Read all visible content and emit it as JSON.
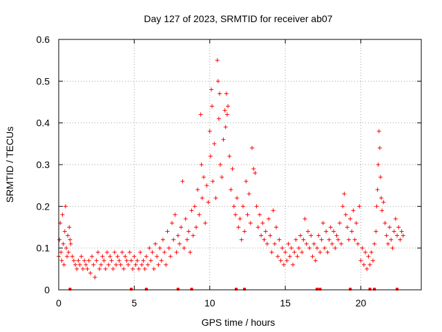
{
  "chart_data": {
    "type": "scatter",
    "title": "Day 127 of 2023, SRMTID for receiver ab07",
    "xlabel": "GPS time / hours",
    "ylabel": "SRMTID / TECUs",
    "xlim": [
      0,
      24
    ],
    "ylim": [
      0,
      0.6
    ],
    "xticks": [
      0,
      5,
      10,
      15,
      20
    ],
    "yticks": [
      0,
      0.1,
      0.2,
      0.3,
      0.4,
      0.5,
      0.6
    ],
    "xtick_labels": [
      "0",
      "5",
      "10",
      "15",
      "20"
    ],
    "ytick_labels": [
      "0",
      "0.1",
      "0.2",
      "0.3",
      "0.4",
      "0.5",
      "0.6"
    ],
    "grid": true,
    "marker": "+",
    "color": "#ff0000",
    "series": [
      {
        "name": "SRMTID",
        "points": [
          [
            0.0,
            0.08
          ],
          [
            0.05,
            0.12
          ],
          [
            0.1,
            0.16
          ],
          [
            0.15,
            0.09
          ],
          [
            0.2,
            0.07
          ],
          [
            0.25,
            0.18
          ],
          [
            0.3,
            0.11
          ],
          [
            0.35,
            0.06
          ],
          [
            0.4,
            0.14
          ],
          [
            0.45,
            0.2
          ],
          [
            0.5,
            0.1
          ],
          [
            0.55,
            0.08
          ],
          [
            0.6,
            0.13
          ],
          [
            0.65,
            0.09
          ],
          [
            0.7,
            0.15
          ],
          [
            0.75,
            0.12
          ],
          [
            0.8,
            0.11
          ],
          [
            0.9,
            0.08
          ],
          [
            1.0,
            0.07
          ],
          [
            1.1,
            0.06
          ],
          [
            1.2,
            0.05
          ],
          [
            1.3,
            0.07
          ],
          [
            1.4,
            0.06
          ],
          [
            1.5,
            0.08
          ],
          [
            1.6,
            0.05
          ],
          [
            1.7,
            0.07
          ],
          [
            1.8,
            0.06
          ],
          [
            1.9,
            0.05
          ],
          [
            2.0,
            0.07
          ],
          [
            2.1,
            0.04
          ],
          [
            2.2,
            0.08
          ],
          [
            2.3,
            0.06
          ],
          [
            2.4,
            0.03
          ],
          [
            2.5,
            0.07
          ],
          [
            2.6,
            0.09
          ],
          [
            2.7,
            0.05
          ],
          [
            2.8,
            0.06
          ],
          [
            2.9,
            0.08
          ],
          [
            3.0,
            0.07
          ],
          [
            3.1,
            0.05
          ],
          [
            3.2,
            0.09
          ],
          [
            3.3,
            0.06
          ],
          [
            3.4,
            0.08
          ],
          [
            3.5,
            0.07
          ],
          [
            3.6,
            0.05
          ],
          [
            3.7,
            0.09
          ],
          [
            3.8,
            0.06
          ],
          [
            3.9,
            0.08
          ],
          [
            4.0,
            0.07
          ],
          [
            4.1,
            0.06
          ],
          [
            4.2,
            0.09
          ],
          [
            4.3,
            0.05
          ],
          [
            4.4,
            0.08
          ],
          [
            4.5,
            0.07
          ],
          [
            4.6,
            0.06
          ],
          [
            4.7,
            0.09
          ],
          [
            4.8,
            0.07
          ],
          [
            4.9,
            0.05
          ],
          [
            5.0,
            0.08
          ],
          [
            5.1,
            0.06
          ],
          [
            5.2,
            0.07
          ],
          [
            5.3,
            0.05
          ],
          [
            5.4,
            0.09
          ],
          [
            5.5,
            0.06
          ],
          [
            5.6,
            0.07
          ],
          [
            5.7,
            0.05
          ],
          [
            5.8,
            0.08
          ],
          [
            5.9,
            0.06
          ],
          [
            6.0,
            0.1
          ],
          [
            6.1,
            0.07
          ],
          [
            6.2,
            0.09
          ],
          [
            6.3,
            0.05
          ],
          [
            6.4,
            0.11
          ],
          [
            6.5,
            0.08
          ],
          [
            6.6,
            0.06
          ],
          [
            6.7,
            0.1
          ],
          [
            6.8,
            0.07
          ],
          [
            6.9,
            0.12
          ],
          [
            7.0,
            0.09
          ],
          [
            7.1,
            0.06
          ],
          [
            7.2,
            0.14
          ],
          [
            7.3,
            0.1
          ],
          [
            7.4,
            0.08
          ],
          [
            7.5,
            0.16
          ],
          [
            7.6,
            0.12
          ],
          [
            7.7,
            0.18
          ],
          [
            7.8,
            0.09
          ],
          [
            7.9,
            0.13
          ],
          [
            8.0,
            0.11
          ],
          [
            8.1,
            0.15
          ],
          [
            8.2,
            0.26
          ],
          [
            8.3,
            0.1
          ],
          [
            8.4,
            0.17
          ],
          [
            8.5,
            0.12
          ],
          [
            8.6,
            0.14
          ],
          [
            8.7,
            0.09
          ],
          [
            8.8,
            0.19
          ],
          [
            8.9,
            0.13
          ],
          [
            9.0,
            0.2
          ],
          [
            9.1,
            0.15
          ],
          [
            9.2,
            0.24
          ],
          [
            9.3,
            0.18
          ],
          [
            9.4,
            0.42
          ],
          [
            9.45,
            0.3
          ],
          [
            9.5,
            0.22
          ],
          [
            9.6,
            0.27
          ],
          [
            9.7,
            0.16
          ],
          [
            9.8,
            0.25
          ],
          [
            9.9,
            0.21
          ],
          [
            10.0,
            0.38
          ],
          [
            10.05,
            0.32
          ],
          [
            10.1,
            0.48
          ],
          [
            10.15,
            0.44
          ],
          [
            10.2,
            0.26
          ],
          [
            10.3,
            0.35
          ],
          [
            10.4,
            0.22
          ],
          [
            10.5,
            0.55
          ],
          [
            10.55,
            0.5
          ],
          [
            10.6,
            0.41
          ],
          [
            10.65,
            0.47
          ],
          [
            10.7,
            0.3
          ],
          [
            10.8,
            0.27
          ],
          [
            10.9,
            0.36
          ],
          [
            11.0,
            0.43
          ],
          [
            11.05,
            0.39
          ],
          [
            11.1,
            0.47
          ],
          [
            11.15,
            0.42
          ],
          [
            11.2,
            0.44
          ],
          [
            11.3,
            0.32
          ],
          [
            11.4,
            0.24
          ],
          [
            11.5,
            0.29
          ],
          [
            11.6,
            0.2
          ],
          [
            11.7,
            0.18
          ],
          [
            11.8,
            0.22
          ],
          [
            11.9,
            0.15
          ],
          [
            12.0,
            0.17
          ],
          [
            12.1,
            0.12
          ],
          [
            12.2,
            0.2
          ],
          [
            12.3,
            0.14
          ],
          [
            12.4,
            0.26
          ],
          [
            12.5,
            0.18
          ],
          [
            12.6,
            0.23
          ],
          [
            12.7,
            0.16
          ],
          [
            12.8,
            0.34
          ],
          [
            12.9,
            0.29
          ],
          [
            13.0,
            0.28
          ],
          [
            13.1,
            0.2
          ],
          [
            13.2,
            0.15
          ],
          [
            13.3,
            0.18
          ],
          [
            13.4,
            0.13
          ],
          [
            13.5,
            0.16
          ],
          [
            13.6,
            0.12
          ],
          [
            13.7,
            0.14
          ],
          [
            13.8,
            0.11
          ],
          [
            13.9,
            0.17
          ],
          [
            14.0,
            0.13
          ],
          [
            14.1,
            0.09
          ],
          [
            14.2,
            0.19
          ],
          [
            14.3,
            0.11
          ],
          [
            14.4,
            0.15
          ],
          [
            14.5,
            0.08
          ],
          [
            14.6,
            0.12
          ],
          [
            14.7,
            0.07
          ],
          [
            14.8,
            0.1
          ],
          [
            14.9,
            0.06
          ],
          [
            15.0,
            0.09
          ],
          [
            15.1,
            0.07
          ],
          [
            15.2,
            0.11
          ],
          [
            15.3,
            0.08
          ],
          [
            15.4,
            0.1
          ],
          [
            15.5,
            0.06
          ],
          [
            15.6,
            0.09
          ],
          [
            15.7,
            0.12
          ],
          [
            15.8,
            0.08
          ],
          [
            15.9,
            0.1
          ],
          [
            16.0,
            0.13
          ],
          [
            16.1,
            0.09
          ],
          [
            16.2,
            0.12
          ],
          [
            16.3,
            0.17
          ],
          [
            16.4,
            0.11
          ],
          [
            16.5,
            0.14
          ],
          [
            16.6,
            0.1
          ],
          [
            16.7,
            0.13
          ],
          [
            16.8,
            0.08
          ],
          [
            16.9,
            0.11
          ],
          [
            17.0,
            0.07
          ],
          [
            17.1,
            0.1
          ],
          [
            17.2,
            0.13
          ],
          [
            17.3,
            0.09
          ],
          [
            17.4,
            0.12
          ],
          [
            17.5,
            0.16
          ],
          [
            17.6,
            0.1
          ],
          [
            17.7,
            0.14
          ],
          [
            17.8,
            0.09
          ],
          [
            17.9,
            0.12
          ],
          [
            18.0,
            0.15
          ],
          [
            18.1,
            0.11
          ],
          [
            18.2,
            0.14
          ],
          [
            18.3,
            0.1
          ],
          [
            18.4,
            0.13
          ],
          [
            18.5,
            0.12
          ],
          [
            18.6,
            0.16
          ],
          [
            18.7,
            0.11
          ],
          [
            18.8,
            0.2
          ],
          [
            18.9,
            0.23
          ],
          [
            19.0,
            0.18
          ],
          [
            19.1,
            0.15
          ],
          [
            19.2,
            0.12
          ],
          [
            19.3,
            0.17
          ],
          [
            19.4,
            0.14
          ],
          [
            19.5,
            0.19
          ],
          [
            19.6,
            0.12
          ],
          [
            19.7,
            0.16
          ],
          [
            19.8,
            0.11
          ],
          [
            19.9,
            0.2
          ],
          [
            20.0,
            0.07
          ],
          [
            20.1,
            0.1
          ],
          [
            20.2,
            0.06
          ],
          [
            20.3,
            0.09
          ],
          [
            20.4,
            0.05
          ],
          [
            20.5,
            0.08
          ],
          [
            20.6,
            0.06
          ],
          [
            20.7,
            0.09
          ],
          [
            20.8,
            0.07
          ],
          [
            20.9,
            0.11
          ],
          [
            21.0,
            0.14
          ],
          [
            21.05,
            0.2
          ],
          [
            21.1,
            0.24
          ],
          [
            21.15,
            0.3
          ],
          [
            21.2,
            0.38
          ],
          [
            21.25,
            0.34
          ],
          [
            21.3,
            0.27
          ],
          [
            21.35,
            0.22
          ],
          [
            21.4,
            0.19
          ],
          [
            21.5,
            0.21
          ],
          [
            21.6,
            0.16
          ],
          [
            21.7,
            0.13
          ],
          [
            21.8,
            0.11
          ],
          [
            21.9,
            0.15
          ],
          [
            22.0,
            0.12
          ],
          [
            22.1,
            0.1
          ],
          [
            22.2,
            0.14
          ],
          [
            22.3,
            0.17
          ],
          [
            22.4,
            0.13
          ],
          [
            22.5,
            0.15
          ],
          [
            22.6,
            0.12
          ],
          [
            22.7,
            0.14
          ],
          [
            22.8,
            0.13
          ]
        ]
      }
    ],
    "baseline_marks_x": [
      0.75,
      4.8,
      5.8,
      7.9,
      8.8,
      11.75,
      12.3,
      17.1,
      17.3,
      19.3,
      20.6,
      20.9,
      22.4
    ]
  }
}
